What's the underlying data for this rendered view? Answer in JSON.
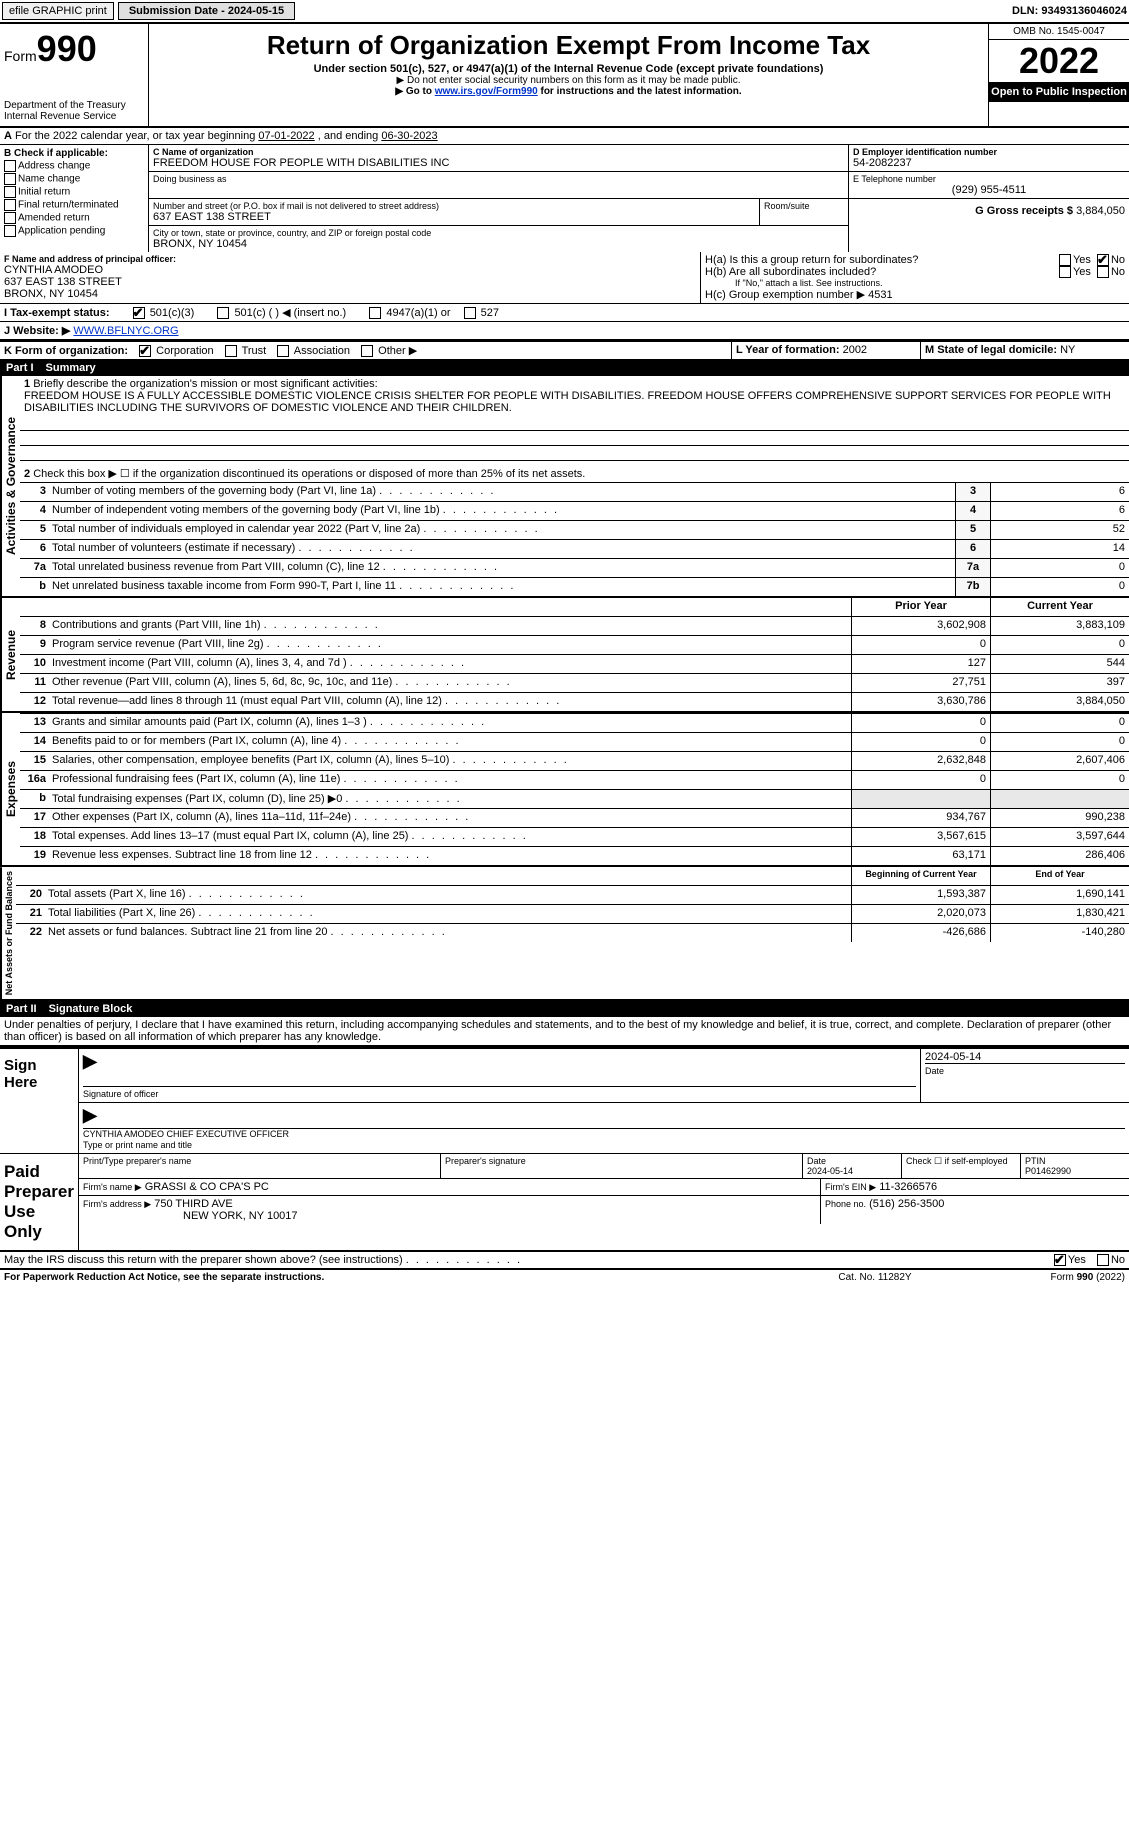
{
  "topbar": {
    "efile": "efile GRAPHIC print",
    "submission_label": "Submission Date - 2024-05-15",
    "dln": "DLN: 93493136046024"
  },
  "header": {
    "form_prefix": "Form",
    "form_number": "990",
    "title": "Return of Organization Exempt From Income Tax",
    "subtitle": "Under section 501(c), 527, or 4947(a)(1) of the Internal Revenue Code (except private foundations)",
    "note1": "▶ Do not enter social security numbers on this form as it may be made public.",
    "note2_pre": "▶ Go to ",
    "note2_link": "www.irs.gov/Form990",
    "note2_post": " for instructions and the latest information.",
    "dept": "Department of the Treasury",
    "irs": "Internal Revenue Service",
    "omb": "OMB No. 1545-0047",
    "year": "2022",
    "open": "Open to Public Inspection"
  },
  "lineA": {
    "text_pre": "For the 2022 calendar year, or tax year beginning ",
    "begin": "07-01-2022",
    "mid": " , and ending ",
    "end": "06-30-2023"
  },
  "sectionB": {
    "label": "B Check if applicable:",
    "items": [
      "Address change",
      "Name change",
      "Initial return",
      "Final return/terminated",
      "Amended return",
      "Application pending"
    ]
  },
  "sectionC": {
    "name_label": "C Name of organization",
    "name": "FREEDOM HOUSE FOR PEOPLE WITH DISABILITIES INC",
    "dba_label": "Doing business as",
    "dba": "",
    "street_label": "Number and street (or P.O. box if mail is not delivered to street address)",
    "street": "637 EAST 138 STREET",
    "room_label": "Room/suite",
    "city_label": "City or town, state or province, country, and ZIP or foreign postal code",
    "city": "BRONX, NY  10454"
  },
  "sectionD": {
    "label": "D Employer identification number",
    "ein": "54-2082237",
    "e_label": "E Telephone number",
    "phone": "(929) 955-4511",
    "g_label": "G Gross receipts $",
    "gross": "3,884,050"
  },
  "sectionF": {
    "label": "F Name and address of principal officer:",
    "name": "CYNTHIA AMODEO",
    "addr1": "637 EAST 138 STREET",
    "addr2": "BRONX, NY  10454"
  },
  "sectionH": {
    "a_label": "H(a)  Is this a group return for subordinates?",
    "yes": "Yes",
    "no": "No",
    "b_label": "H(b)  Are all subordinates included?",
    "b_note": "If \"No,\" attach a list. See instructions.",
    "c_label": "H(c)  Group exemption number ▶",
    "c_val": "4531"
  },
  "sectionI": {
    "label": "I   Tax-exempt status:",
    "opt1": "501(c)(3)",
    "opt2": "501(c) (  ) ◀ (insert no.)",
    "opt3": "4947(a)(1) or",
    "opt4": "527"
  },
  "sectionJ": {
    "label": "J   Website: ▶",
    "url": "WWW.BFLNYC.ORG"
  },
  "sectionK": {
    "label": "K Form of organization:",
    "opts": [
      "Corporation",
      "Trust",
      "Association",
      "Other ▶"
    ]
  },
  "sectionL": {
    "label": "L Year of formation:",
    "val": "2002",
    "m_label": "M State of legal domicile:",
    "m_val": "NY"
  },
  "part1": {
    "label": "Part I",
    "title": "Summary"
  },
  "summary": {
    "line1_label": "Briefly describe the organization's mission or most significant activities:",
    "line1_text": "FREEDOM HOUSE IS A FULLY ACCESSIBLE DOMESTIC VIOLENCE CRISIS SHELTER FOR PEOPLE WITH DISABILITIES. FREEDOM HOUSE OFFERS COMPREHENSIVE SUPPORT SERVICES FOR PEOPLE WITH DISABILITIES INCLUDING THE SURVIVORS OF DOMESTIC VIOLENCE AND THEIR CHILDREN.",
    "line2": "Check this box ▶ ☐ if the organization discontinued its operations or disposed of more than 25% of its net assets.",
    "rows_governance": [
      {
        "n": "3",
        "label": "Number of voting members of the governing body (Part VI, line 1a)",
        "ln": "3",
        "v": "6"
      },
      {
        "n": "4",
        "label": "Number of independent voting members of the governing body (Part VI, line 1b)",
        "ln": "4",
        "v": "6"
      },
      {
        "n": "5",
        "label": "Total number of individuals employed in calendar year 2022 (Part V, line 2a)",
        "ln": "5",
        "v": "52"
      },
      {
        "n": "6",
        "label": "Total number of volunteers (estimate if necessary)",
        "ln": "6",
        "v": "14"
      },
      {
        "n": "7a",
        "label": "Total unrelated business revenue from Part VIII, column (C), line 12",
        "ln": "7a",
        "v": "0"
      },
      {
        "n": "b",
        "label": "Net unrelated business taxable income from Form 990-T, Part I, line 11",
        "ln": "7b",
        "v": "0"
      }
    ],
    "hdr_prior": "Prior Year",
    "hdr_current": "Current Year",
    "rows_revenue": [
      {
        "n": "8",
        "label": "Contributions and grants (Part VIII, line 1h)",
        "py": "3,602,908",
        "cy": "3,883,109"
      },
      {
        "n": "9",
        "label": "Program service revenue (Part VIII, line 2g)",
        "py": "0",
        "cy": "0"
      },
      {
        "n": "10",
        "label": "Investment income (Part VIII, column (A), lines 3, 4, and 7d )",
        "py": "127",
        "cy": "544"
      },
      {
        "n": "11",
        "label": "Other revenue (Part VIII, column (A), lines 5, 6d, 8c, 9c, 10c, and 11e)",
        "py": "27,751",
        "cy": "397"
      },
      {
        "n": "12",
        "label": "Total revenue—add lines 8 through 11 (must equal Part VIII, column (A), line 12)",
        "py": "3,630,786",
        "cy": "3,884,050"
      }
    ],
    "rows_expenses": [
      {
        "n": "13",
        "label": "Grants and similar amounts paid (Part IX, column (A), lines 1–3 )",
        "py": "0",
        "cy": "0"
      },
      {
        "n": "14",
        "label": "Benefits paid to or for members (Part IX, column (A), line 4)",
        "py": "0",
        "cy": "0"
      },
      {
        "n": "15",
        "label": "Salaries, other compensation, employee benefits (Part IX, column (A), lines 5–10)",
        "py": "2,632,848",
        "cy": "2,607,406"
      },
      {
        "n": "16a",
        "label": "Professional fundraising fees (Part IX, column (A), line 11e)",
        "py": "0",
        "cy": "0"
      },
      {
        "n": "b",
        "label": "Total fundraising expenses (Part IX, column (D), line 25) ▶0",
        "py": "",
        "cy": ""
      },
      {
        "n": "17",
        "label": "Other expenses (Part IX, column (A), lines 11a–11d, 11f–24e)",
        "py": "934,767",
        "cy": "990,238"
      },
      {
        "n": "18",
        "label": "Total expenses. Add lines 13–17 (must equal Part IX, column (A), line 25)",
        "py": "3,567,615",
        "cy": "3,597,644"
      },
      {
        "n": "19",
        "label": "Revenue less expenses. Subtract line 18 from line 12",
        "py": "63,171",
        "cy": "286,406"
      }
    ],
    "hdr_begin": "Beginning of Current Year",
    "hdr_end": "End of Year",
    "rows_net": [
      {
        "n": "20",
        "label": "Total assets (Part X, line 16)",
        "py": "1,593,387",
        "cy": "1,690,141"
      },
      {
        "n": "21",
        "label": "Total liabilities (Part X, line 26)",
        "py": "2,020,073",
        "cy": "1,830,421"
      },
      {
        "n": "22",
        "label": "Net assets or fund balances. Subtract line 21 from line 20",
        "py": "-426,686",
        "cy": "-140,280"
      }
    ]
  },
  "vert": {
    "gov": "Activities & Governance",
    "rev": "Revenue",
    "exp": "Expenses",
    "net": "Net Assets or Fund Balances"
  },
  "part2": {
    "label": "Part II",
    "title": "Signature Block",
    "declaration": "Under penalties of perjury, I declare that I have examined this return, including accompanying schedules and statements, and to the best of my knowledge and belief, it is true, correct, and complete. Declaration of preparer (other than officer) is based on all information of which preparer has any knowledge."
  },
  "sign": {
    "here": "Sign Here",
    "sig_label": "Signature of officer",
    "date_label": "Date",
    "date": "2024-05-14",
    "name": "CYNTHIA AMODEO  CHIEF EXECUTIVE OFFICER",
    "name_label": "Type or print name and title"
  },
  "preparer": {
    "title": "Paid Preparer Use Only",
    "print_label": "Print/Type preparer's name",
    "print_val": "",
    "sig_label": "Preparer's signature",
    "date_label": "Date",
    "date": "2024-05-14",
    "check_label": "Check ☐ if self-employed",
    "ptin_label": "PTIN",
    "ptin": "P01462990",
    "firm_name_label": "Firm's name    ▶",
    "firm_name": "GRASSI & CO CPA'S PC",
    "firm_ein_label": "Firm's EIN ▶",
    "firm_ein": "11-3266576",
    "firm_addr_label": "Firm's address ▶",
    "firm_addr1": "750 THIRD AVE",
    "firm_addr2": "NEW YORK, NY  10017",
    "phone_label": "Phone no.",
    "phone": "(516) 256-3500"
  },
  "discuss": {
    "text": "May the IRS discuss this return with the preparer shown above? (see instructions)",
    "yes": "Yes",
    "no": "No"
  },
  "footer": {
    "left": "For Paperwork Reduction Act Notice, see the separate instructions.",
    "mid": "Cat. No. 11282Y",
    "right": "Form 990 (2022)"
  }
}
